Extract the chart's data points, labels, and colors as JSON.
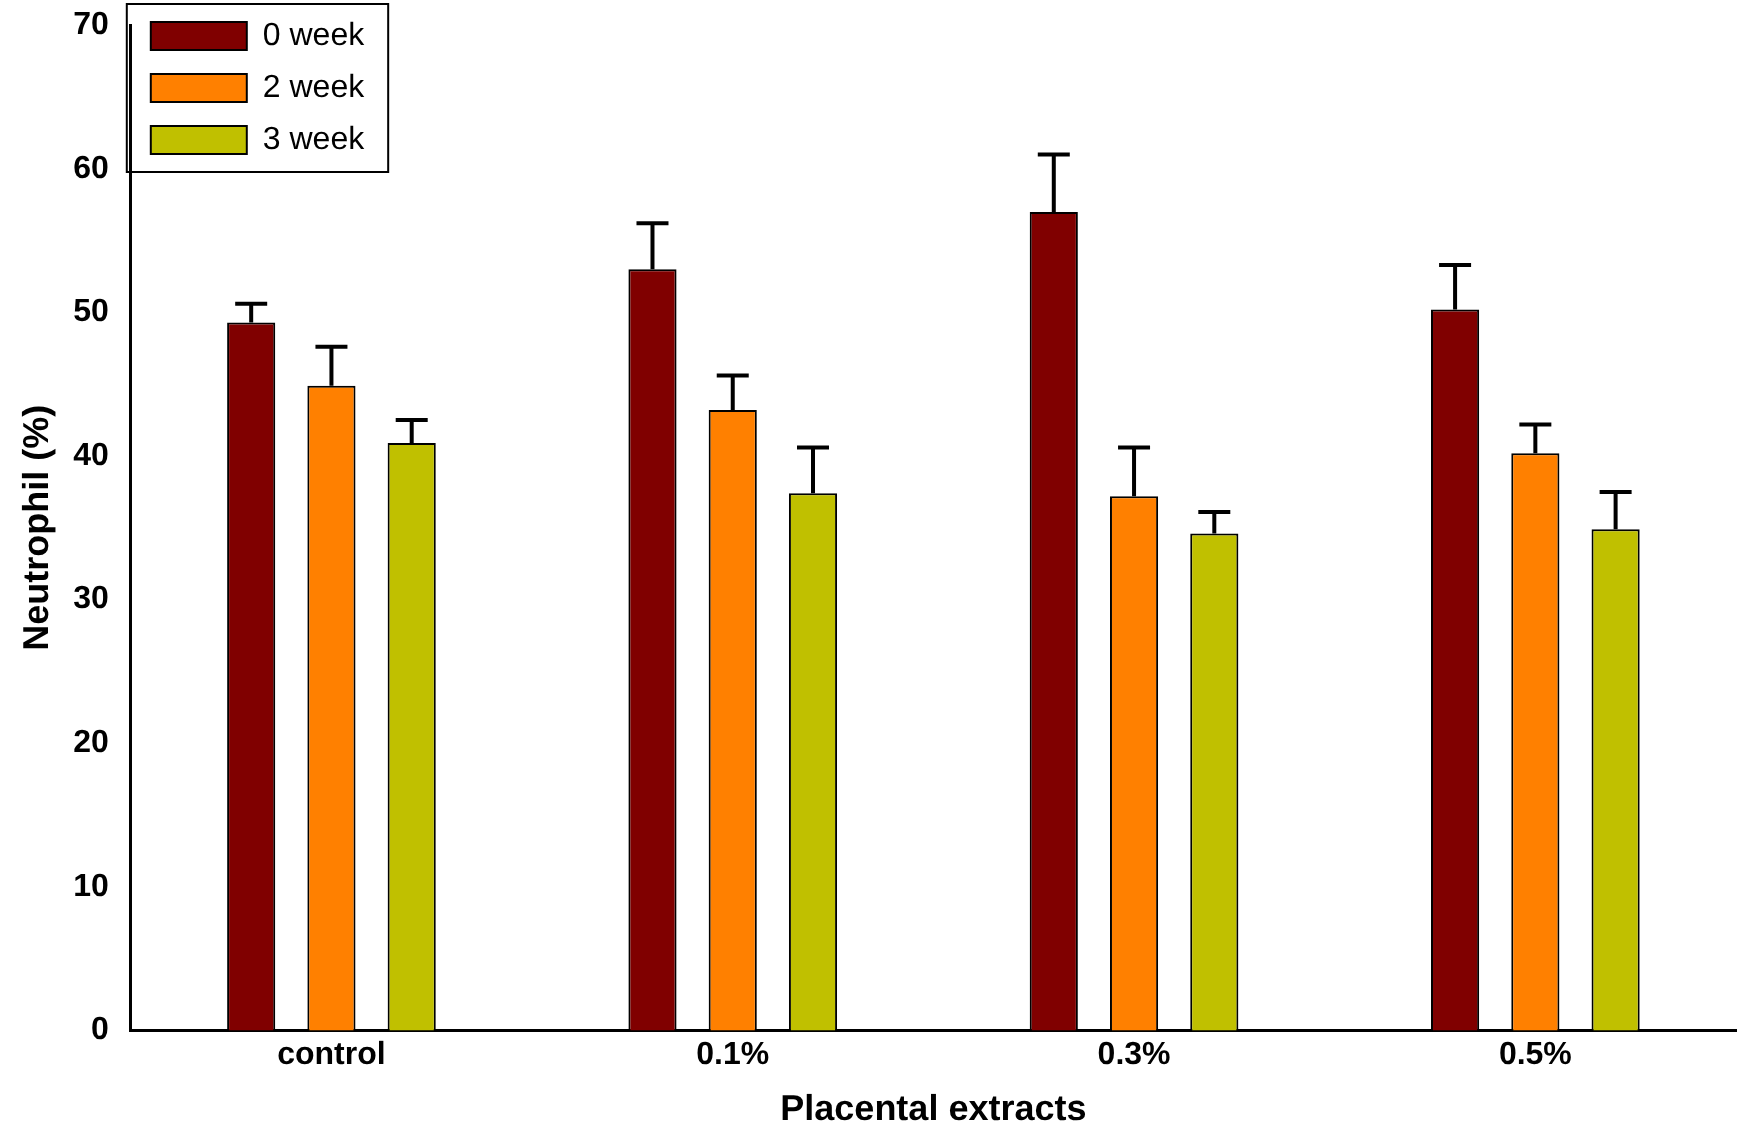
{
  "chart_data": {
    "type": "bar",
    "xlabel": "Placental extracts",
    "ylabel": "Neutrophil (%)",
    "categories": [
      "control",
      "0.1%",
      "0.3%",
      "0.5%"
    ],
    "series": [
      {
        "name": "0 week",
        "color": "#800000",
        "values": [
          49.3,
          53.0,
          57.0,
          50.2
        ],
        "errors": [
          1.3,
          3.2,
          4.0,
          3.1
        ]
      },
      {
        "name": "2 week",
        "color": "#ff8000",
        "values": [
          44.9,
          43.2,
          37.2,
          40.2
        ],
        "errors": [
          2.7,
          2.4,
          3.4,
          2.0
        ]
      },
      {
        "name": "3 week",
        "color": "#c0c000",
        "values": [
          40.9,
          37.4,
          34.6,
          34.9
        ],
        "errors": [
          1.6,
          3.2,
          1.5,
          2.6
        ]
      }
    ],
    "ylim": [
      0,
      70
    ],
    "yticks": [
      0,
      10,
      20,
      30,
      40,
      50,
      60,
      70
    ],
    "grid": false,
    "legend": "top left"
  }
}
